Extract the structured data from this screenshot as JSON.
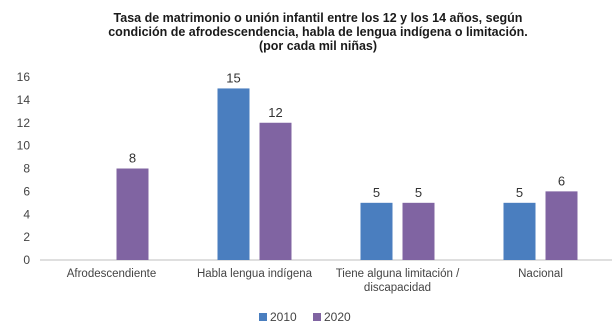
{
  "chart_data": {
    "type": "bar",
    "title_lines": [
      "Tasa de matrimonio o unión infantil entre los 12 y los 14 años, según",
      "condición de afrodescendencia, habla de lengua indígena o limitación.",
      "(por cada mil niñas)"
    ],
    "categories": [
      [
        "Afrodescendiente"
      ],
      [
        "Habla lengua indígena"
      ],
      [
        "Tiene alguna limitación /",
        "discapacidad"
      ],
      [
        "Nacional"
      ]
    ],
    "series": [
      {
        "name": "2010",
        "color": "#4a7ebf",
        "values": [
          null,
          15,
          5,
          5
        ]
      },
      {
        "name": "2020",
        "color": "#8064a2",
        "values": [
          8,
          12,
          5,
          6
        ]
      }
    ],
    "ylim": [
      0,
      16
    ],
    "yticks": [
      0,
      2,
      4,
      6,
      8,
      10,
      12,
      14,
      16
    ],
    "grid": false,
    "legend_position": "bottom"
  }
}
